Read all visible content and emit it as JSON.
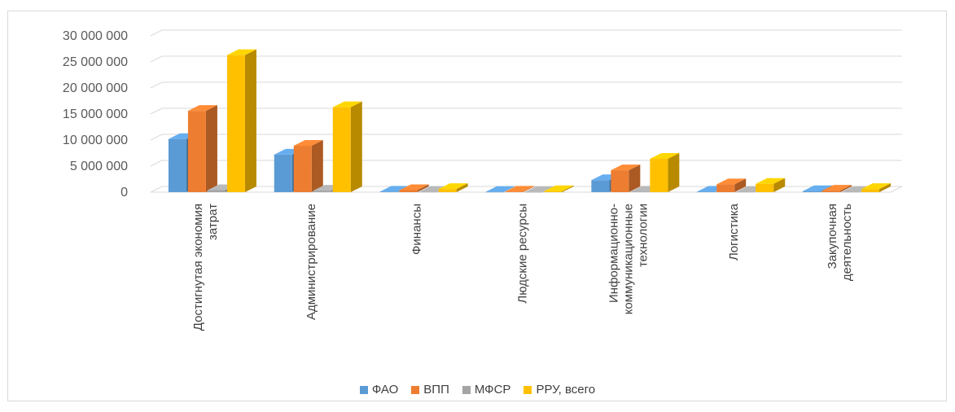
{
  "chart_data": {
    "type": "bar",
    "style": "3d-clustered-column",
    "title": "",
    "xlabel": "",
    "ylabel": "",
    "ylim": [
      0,
      30000000
    ],
    "yticks": [
      "0",
      "5 000 000",
      "10 000 000",
      "15 000 000",
      "20 000 000",
      "25 000 000",
      "30 000 000"
    ],
    "grid": true,
    "legend_position": "bottom",
    "categories": [
      [
        "Достигнутая экономия",
        "затрат"
      ],
      [
        "Администрирование"
      ],
      [
        "Финансы"
      ],
      [
        "Людские ресурсы"
      ],
      [
        "Информационно-",
        "коммуникационные",
        "технологии"
      ],
      [
        "Логистика"
      ],
      [
        "Закупочная",
        "деятельность"
      ]
    ],
    "series": [
      {
        "name": "ФАО",
        "color": "#5b9bd5",
        "values": [
          10200000,
          7200000,
          100000,
          50000,
          2300000,
          100000,
          200000
        ]
      },
      {
        "name": "ВПП",
        "color": "#ed7d31",
        "values": [
          15600000,
          8900000,
          400000,
          100000,
          4200000,
          1500000,
          300000
        ]
      },
      {
        "name": "МФСР",
        "color": "#a5a5a5",
        "values": [
          400000,
          300000,
          50000,
          20000,
          100000,
          50000,
          50000
        ]
      },
      {
        "name": "РРУ, всего",
        "color": "#ffc000",
        "values": [
          26300000,
          16300000,
          600000,
          200000,
          6400000,
          1600000,
          600000
        ]
      }
    ]
  }
}
